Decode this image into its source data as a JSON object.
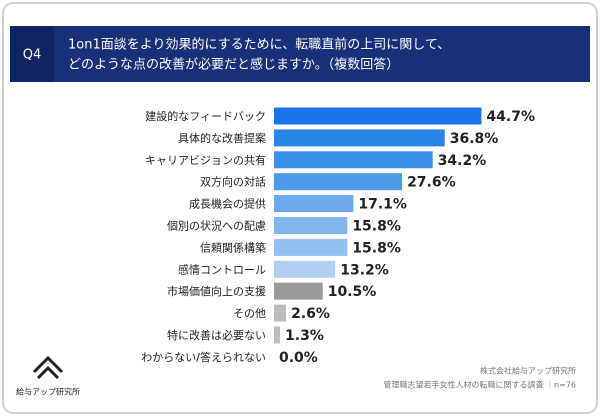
{
  "chart_data": {
    "type": "bar",
    "orientation": "horizontal",
    "question_label": "Q4",
    "title": [
      "1on1面談をより効果的にするために、転職直前の上司に関して、",
      "どのような点の改善が必要だと感じますか。（複数回答）"
    ],
    "categories": [
      "建設的なフィードバック",
      "具体的な改善提案",
      "キャリアビジョンの共有",
      "双方向の対話",
      "成長機会の提供",
      "個別の状況への配慮",
      "信頼関係構築",
      "感情コントロール",
      "市場価値向上の支援",
      "その他",
      "特に改善は必要ない",
      "わからない/答えられない"
    ],
    "values": [
      44.7,
      36.8,
      34.2,
      27.6,
      17.1,
      15.8,
      15.8,
      13.2,
      10.5,
      2.6,
      1.3,
      0.0
    ],
    "value_labels": [
      "44.7%",
      "36.8%",
      "34.2%",
      "27.6%",
      "17.1%",
      "15.8%",
      "15.8%",
      "13.2%",
      "10.5%",
      "2.6%",
      "1.3%",
      "0.0%"
    ],
    "colors": [
      "#1a73e8",
      "#2a84ea",
      "#3b8fe9",
      "#4d9ae9",
      "#6aa9ec",
      "#80b5ee",
      "#92c0f0",
      "#b0d1f4",
      "#9a9a9a",
      "#bdbdbd",
      "#bdbdbd",
      "#bdbdbd"
    ],
    "xlim": [
      0,
      50
    ],
    "logo_text": "給与アップ研究所",
    "source": [
      "株式会社給与アップ研究所",
      "管理職志望若手女性人材の転職に関する調査 ｜n=76"
    ]
  }
}
